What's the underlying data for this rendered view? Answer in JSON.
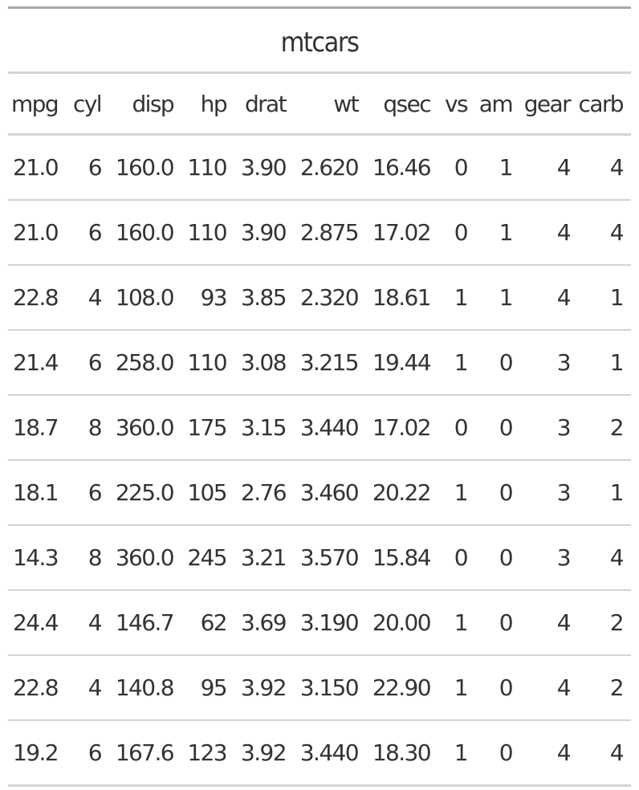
{
  "chart_data": {
    "type": "table",
    "title": "mtcars",
    "columns": [
      "mpg",
      "cyl",
      "disp",
      "hp",
      "drat",
      "wt",
      "qsec",
      "vs",
      "am",
      "gear",
      "carb"
    ],
    "rows": [
      [
        "21.0",
        "6",
        "160.0",
        "110",
        "3.90",
        "2.620",
        "16.46",
        "0",
        "1",
        "4",
        "4"
      ],
      [
        "21.0",
        "6",
        "160.0",
        "110",
        "3.90",
        "2.875",
        "17.02",
        "0",
        "1",
        "4",
        "4"
      ],
      [
        "22.8",
        "4",
        "108.0",
        "93",
        "3.85",
        "2.320",
        "18.61",
        "1",
        "1",
        "4",
        "1"
      ],
      [
        "21.4",
        "6",
        "258.0",
        "110",
        "3.08",
        "3.215",
        "19.44",
        "1",
        "0",
        "3",
        "1"
      ],
      [
        "18.7",
        "8",
        "360.0",
        "175",
        "3.15",
        "3.440",
        "17.02",
        "0",
        "0",
        "3",
        "2"
      ],
      [
        "18.1",
        "6",
        "225.0",
        "105",
        "2.76",
        "3.460",
        "20.22",
        "1",
        "0",
        "3",
        "1"
      ],
      [
        "14.3",
        "8",
        "360.0",
        "245",
        "3.21",
        "3.570",
        "15.84",
        "0",
        "0",
        "3",
        "4"
      ],
      [
        "24.4",
        "4",
        "146.7",
        "62",
        "3.69",
        "3.190",
        "20.00",
        "1",
        "0",
        "4",
        "2"
      ],
      [
        "22.8",
        "4",
        "140.8",
        "95",
        "3.92",
        "3.150",
        "22.90",
        "1",
        "0",
        "4",
        "2"
      ],
      [
        "19.2",
        "6",
        "167.6",
        "123",
        "3.92",
        "3.440",
        "18.30",
        "1",
        "0",
        "4",
        "4"
      ]
    ]
  }
}
